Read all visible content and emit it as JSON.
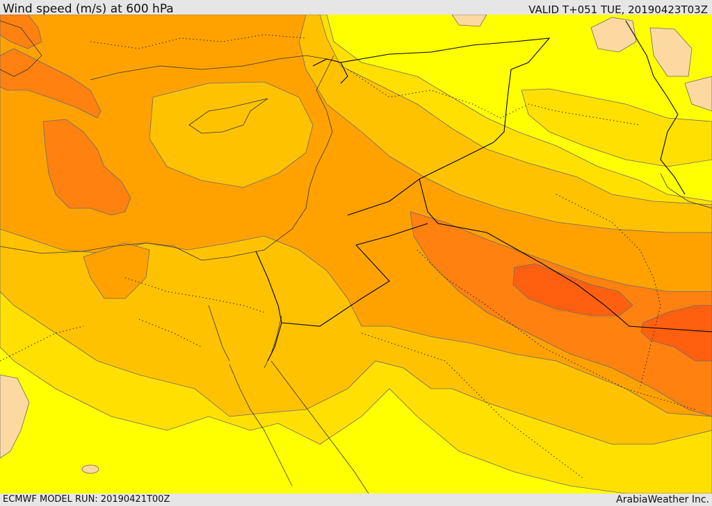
{
  "header": {
    "title": "Wind speed (m/s) at 600 hPa",
    "valid": "VALID T+051 TUE, 20190423T03Z"
  },
  "footer": {
    "model_run": "ECMWF MODEL RUN: 20190421T00Z",
    "credit": "ArabiaWeather Inc."
  },
  "map": {
    "colors": {
      "level_lowest": "#fcd9a0",
      "level_1": "#ffff00",
      "level_2": "#ffe000",
      "level_3": "#ffc200",
      "level_4": "#ffa200",
      "level_5": "#ff8110",
      "level_6": "#ff6010"
    }
  }
}
